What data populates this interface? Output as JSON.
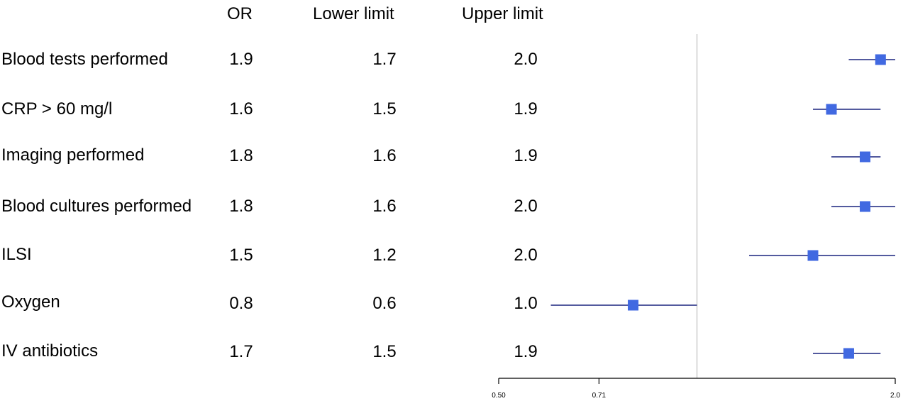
{
  "headers": {
    "or": "OR",
    "lower": "Lower limit",
    "upper": "Upper limit"
  },
  "rows": [
    {
      "label": "Blood tests performed",
      "or": "1.9",
      "lower": "1.7",
      "upper": "2.0"
    },
    {
      "label": "CRP > 60 mg/l",
      "or": "1.6",
      "lower": "1.5",
      "upper": "1.9"
    },
    {
      "label": "Imaging performed",
      "or": "1.8",
      "lower": "1.6",
      "upper": "1.9"
    },
    {
      "label": "Blood cultures performed",
      "or": "1.8",
      "lower": "1.6",
      "upper": "2.0"
    },
    {
      "label": "ILSI",
      "or": "1.5",
      "lower": "1.2",
      "upper": "2.0"
    },
    {
      "label": "Oxygen",
      "or": "0.8",
      "lower": "0.6",
      "upper": "1.0"
    },
    {
      "label": "IV antibiotics",
      "or": "1.7",
      "lower": "1.5",
      "upper": "1.9"
    }
  ],
  "chart_data": {
    "type": "forest",
    "scale": "log",
    "xlim": [
      0.5,
      2.0
    ],
    "xticks": [
      "0.50",
      "0.71",
      "2.0"
    ],
    "xtick_values": [
      0.5,
      0.71,
      2.0
    ],
    "reference_line": 1.0,
    "categories": [
      "Blood tests performed",
      "CRP > 60 mg/l",
      "Imaging performed",
      "Blood cultures performed",
      "ILSI",
      "Oxygen",
      "IV antibiotics"
    ],
    "or": [
      1.9,
      1.6,
      1.8,
      1.8,
      1.5,
      0.8,
      1.7
    ],
    "lower": [
      1.7,
      1.5,
      1.6,
      1.6,
      1.2,
      0.6,
      1.5
    ],
    "upper": [
      2.0,
      1.9,
      1.9,
      2.0,
      2.0,
      1.0,
      1.9
    ],
    "colors": {
      "marker": "#4169e1",
      "ci_line": "#1a237e",
      "ref_line": "#cccccc",
      "axis": "#000000"
    }
  }
}
